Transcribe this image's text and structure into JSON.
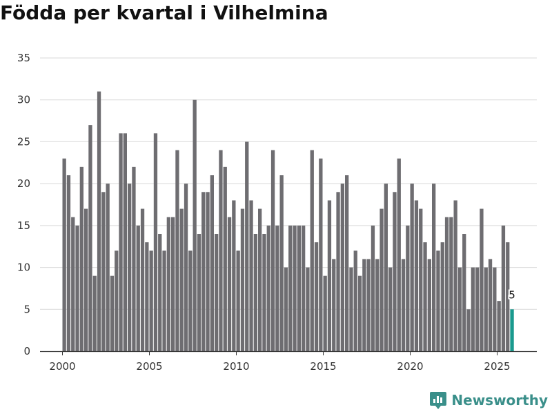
{
  "title": "Födda per kvartal i Vilhelmina",
  "brand": "Newsworthy",
  "colors": {
    "bar": "#6e6d71",
    "highlight": "#1a9a8e",
    "grid": "#d9d9d9",
    "brand": "#3a8f8a"
  },
  "chart_data": {
    "type": "bar",
    "title": "Födda per kvartal i Vilhelmina",
    "xlabel": "",
    "ylabel": "",
    "ylim": [
      0,
      35
    ],
    "yticks": [
      0,
      5,
      10,
      15,
      20,
      25,
      30,
      35
    ],
    "xticks": [
      2000,
      2005,
      2010,
      2015,
      2020,
      2025
    ],
    "start_year": 2000,
    "start_quarter": 1,
    "values": [
      23,
      21,
      16,
      15,
      22,
      17,
      27,
      9,
      31,
      19,
      20,
      9,
      12,
      26,
      26,
      20,
      22,
      15,
      17,
      13,
      12,
      26,
      14,
      12,
      16,
      16,
      24,
      17,
      20,
      12,
      30,
      14,
      19,
      19,
      21,
      14,
      24,
      22,
      16,
      18,
      12,
      17,
      25,
      18,
      14,
      17,
      14,
      15,
      24,
      15,
      21,
      10,
      15,
      15,
      15,
      15,
      10,
      24,
      13,
      23,
      9,
      18,
      11,
      19,
      20,
      21,
      10,
      12,
      9,
      11,
      11,
      15,
      11,
      17,
      20,
      10,
      19,
      23,
      11,
      15,
      20,
      18,
      17,
      13,
      11,
      20,
      12,
      13,
      16,
      16,
      18,
      10,
      14,
      5,
      10,
      10,
      17,
      10,
      11,
      10,
      6,
      15,
      13,
      5
    ],
    "highlight_index": 103,
    "highlight_label": "5"
  }
}
